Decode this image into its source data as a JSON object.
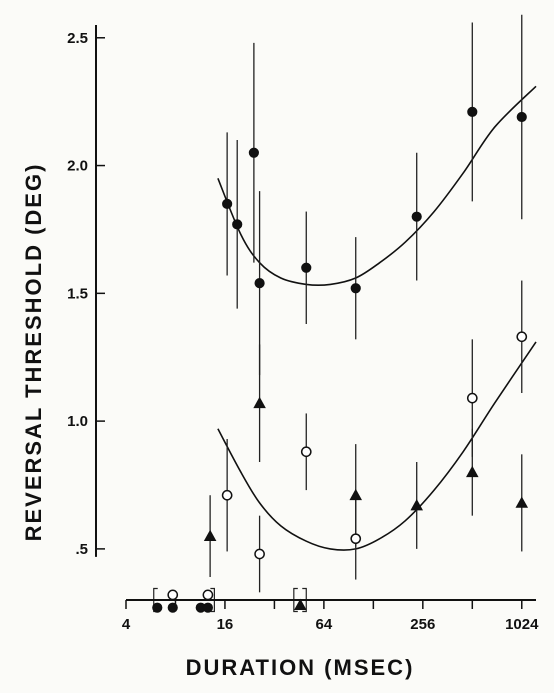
{
  "chart_data": {
    "type": "scatter",
    "title": "",
    "xlabel": "DURATION (MSEC)",
    "ylabel": "REVERSAL THRESHOLD (DEG)",
    "x_scale": "log2",
    "x_ticks": [
      4,
      8,
      16,
      32,
      64,
      128,
      256,
      512,
      1024
    ],
    "x_tick_labels": [
      "4",
      "16",
      "64",
      "256",
      "1024"
    ],
    "y_ticks": [
      0.5,
      1.0,
      1.5,
      2.0,
      2.5
    ],
    "y_tick_labels": [
      ".5",
      "1.0",
      "1.5",
      "2.0",
      "2.5"
    ],
    "xlim": [
      4,
      1250
    ],
    "ylim": [
      0.3,
      2.55
    ],
    "grid": false,
    "series": [
      {
        "marker": "filled-circle",
        "points": [
          {
            "x": 16.5,
            "y": 1.85,
            "err": 0.28
          },
          {
            "x": 19,
            "y": 1.77,
            "err": 0.33
          },
          {
            "x": 24,
            "y": 2.05,
            "err": 0.43
          },
          {
            "x": 26,
            "y": 1.54,
            "err": 0.36
          },
          {
            "x": 50,
            "y": 1.6,
            "err": 0.22
          },
          {
            "x": 100,
            "y": 1.52,
            "err": 0.2
          },
          {
            "x": 235,
            "y": 1.8,
            "err": 0.25
          },
          {
            "x": 512,
            "y": 2.21,
            "err": 0.35
          },
          {
            "x": 1024,
            "y": 2.19,
            "err": 0.4
          }
        ]
      },
      {
        "marker": "open-circle",
        "points": [
          {
            "x": 16.5,
            "y": 0.71,
            "err": 0.22
          },
          {
            "x": 26,
            "y": 0.48,
            "err": 0.15
          },
          {
            "x": 50,
            "y": 0.88,
            "err": 0.15
          },
          {
            "x": 100,
            "y": 0.54,
            "err": 0.16
          },
          {
            "x": 512,
            "y": 1.09,
            "err": 0.23
          },
          {
            "x": 1024,
            "y": 1.33,
            "err": 0.22
          }
        ]
      },
      {
        "marker": "filled-triangle",
        "points": [
          {
            "x": 13,
            "y": 0.55,
            "err": 0.16
          },
          {
            "x": 26,
            "y": 1.07,
            "err": 0.23
          },
          {
            "x": 100,
            "y": 0.71,
            "err": 0.2
          },
          {
            "x": 235,
            "y": 0.67,
            "err": 0.17
          },
          {
            "x": 512,
            "y": 0.8,
            "err": 0.17
          },
          {
            "x": 1024,
            "y": 0.68,
            "err": 0.19
          }
        ]
      }
    ],
    "fit_curves": [
      {
        "points": [
          [
            14.5,
            1.95
          ],
          [
            20,
            1.73
          ],
          [
            26,
            1.62
          ],
          [
            35,
            1.56
          ],
          [
            50,
            1.535
          ],
          [
            70,
            1.535
          ],
          [
            100,
            1.56
          ],
          [
            140,
            1.62
          ],
          [
            200,
            1.7
          ],
          [
            300,
            1.82
          ],
          [
            450,
            1.97
          ],
          [
            700,
            2.15
          ],
          [
            1250,
            2.31
          ]
        ]
      },
      {
        "points": [
          [
            14.5,
            0.97
          ],
          [
            20,
            0.8
          ],
          [
            26,
            0.68
          ],
          [
            35,
            0.59
          ],
          [
            50,
            0.53
          ],
          [
            70,
            0.5
          ],
          [
            100,
            0.5
          ],
          [
            140,
            0.54
          ],
          [
            200,
            0.61
          ],
          [
            300,
            0.73
          ],
          [
            450,
            0.88
          ],
          [
            700,
            1.07
          ],
          [
            1250,
            1.31
          ]
        ]
      }
    ],
    "below_threshold_marks": [
      {
        "x": 6.2,
        "y": 0.27,
        "marker": "filled-circle"
      },
      {
        "x": 7.7,
        "y": 0.32,
        "marker": "open-circle"
      },
      {
        "x": 7.7,
        "y": 0.27,
        "marker": "filled-circle"
      },
      {
        "x": 11.4,
        "y": 0.27,
        "marker": "filled-circle"
      },
      {
        "x": 12.6,
        "y": 0.32,
        "marker": "open-circle"
      },
      {
        "x": 12.6,
        "y": 0.27,
        "marker": "filled-circle"
      },
      {
        "x": 46,
        "y": 0.28,
        "marker": "filled-triangle"
      }
    ],
    "brackets": [
      {
        "x_from": 5.9,
        "x_to": 13.8
      },
      {
        "x_from": 42,
        "x_to": 50
      }
    ]
  }
}
